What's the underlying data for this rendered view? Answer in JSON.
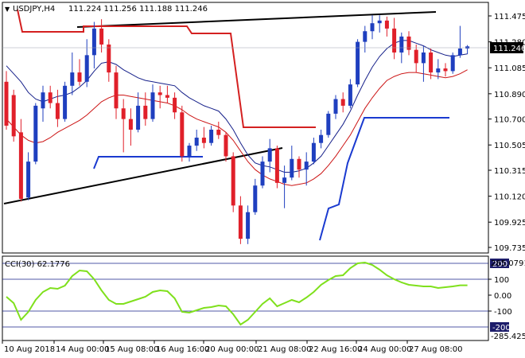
{
  "header": {
    "symbol": "USDJPY,H4",
    "ohlc": "111.224 111.256 111.188 111.246"
  },
  "indicator": {
    "label": "CCI(30) 62.1776",
    "scale_max_label": "285.0791",
    "scale_min_label": "-285.425",
    "levels": [
      200,
      100,
      0.0,
      -100,
      -200
    ],
    "level_labels": [
      "200",
      "100",
      "0.00",
      "-100",
      "-200"
    ]
  },
  "colors": {
    "bull": "#1f3fbf",
    "bear": "#e0202a",
    "ma_fast": "#16208a",
    "ma_slow": "#cc1515",
    "envelope": "#d42020",
    "stop_blue": "#1a3ad0",
    "trend": "#000000",
    "cci": "#7fe01c",
    "price_tag_bg": "#000000",
    "price_tag_fg": "#ffffff"
  },
  "chart_data": {
    "type": "candlestick",
    "symbol": "USDJPY",
    "timeframe": "H4",
    "y_ticks": [
      "111.475",
      "111.280",
      "111.085",
      "110.890",
      "110.700",
      "110.505",
      "110.315",
      "110.120",
      "109.925",
      "109.735"
    ],
    "ylim": [
      109.735,
      111.575
    ],
    "current_price": "111.246",
    "x_ticks": [
      "10 Aug 2018",
      "14 Aug 00:00",
      "15 Aug 08:00",
      "16 Aug 16:00",
      "20 Aug 00:00",
      "21 Aug 08:00",
      "22 Aug 16:00",
      "24 Aug 00:00",
      "27 Aug 08:00"
    ],
    "candles": [
      {
        "o": 110.98,
        "h": 111.06,
        "l": 110.62,
        "c": 110.65
      },
      {
        "o": 110.88,
        "h": 110.92,
        "l": 110.53,
        "c": 110.57
      },
      {
        "o": 110.6,
        "h": 110.7,
        "l": 110.08,
        "c": 110.1
      },
      {
        "o": 110.11,
        "h": 110.45,
        "l": 110.09,
        "c": 110.38
      },
      {
        "o": 110.38,
        "h": 110.82,
        "l": 110.36,
        "c": 110.8
      },
      {
        "o": 110.78,
        "h": 110.95,
        "l": 110.68,
        "c": 110.9
      },
      {
        "o": 110.9,
        "h": 110.95,
        "l": 110.78,
        "c": 110.82
      },
      {
        "o": 110.82,
        "h": 110.92,
        "l": 110.64,
        "c": 110.7
      },
      {
        "o": 110.7,
        "h": 110.98,
        "l": 110.68,
        "c": 110.95
      },
      {
        "o": 110.95,
        "h": 111.2,
        "l": 110.88,
        "c": 111.05
      },
      {
        "o": 111.05,
        "h": 111.15,
        "l": 110.95,
        "c": 110.98
      },
      {
        "o": 110.98,
        "h": 111.3,
        "l": 110.94,
        "c": 111.18
      },
      {
        "o": 111.18,
        "h": 111.43,
        "l": 111.08,
        "c": 111.38
      },
      {
        "o": 111.38,
        "h": 111.45,
        "l": 111.2,
        "c": 111.26
      },
      {
        "o": 111.26,
        "h": 111.3,
        "l": 110.98,
        "c": 111.05
      },
      {
        "o": 111.05,
        "h": 111.1,
        "l": 110.7,
        "c": 110.78
      },
      {
        "o": 110.78,
        "h": 110.85,
        "l": 110.45,
        "c": 110.7
      },
      {
        "o": 110.7,
        "h": 110.78,
        "l": 110.5,
        "c": 110.62
      },
      {
        "o": 110.62,
        "h": 110.9,
        "l": 110.6,
        "c": 110.8
      },
      {
        "o": 110.8,
        "h": 110.9,
        "l": 110.65,
        "c": 110.7
      },
      {
        "o": 110.7,
        "h": 110.96,
        "l": 110.68,
        "c": 110.9
      },
      {
        "o": 110.9,
        "h": 110.95,
        "l": 110.78,
        "c": 110.88
      },
      {
        "o": 110.88,
        "h": 110.95,
        "l": 110.82,
        "c": 110.86
      },
      {
        "o": 110.86,
        "h": 110.9,
        "l": 110.7,
        "c": 110.75
      },
      {
        "o": 110.75,
        "h": 110.8,
        "l": 110.38,
        "c": 110.42
      },
      {
        "o": 110.42,
        "h": 110.52,
        "l": 110.38,
        "c": 110.5
      },
      {
        "o": 110.5,
        "h": 110.62,
        "l": 110.46,
        "c": 110.56
      },
      {
        "o": 110.56,
        "h": 110.64,
        "l": 110.48,
        "c": 110.52
      },
      {
        "o": 110.52,
        "h": 110.65,
        "l": 110.5,
        "c": 110.62
      },
      {
        "o": 110.62,
        "h": 110.68,
        "l": 110.55,
        "c": 110.58
      },
      {
        "o": 110.58,
        "h": 110.6,
        "l": 110.38,
        "c": 110.42
      },
      {
        "o": 110.42,
        "h": 110.45,
        "l": 110.0,
        "c": 110.05
      },
      {
        "o": 110.05,
        "h": 110.12,
        "l": 109.76,
        "c": 109.8
      },
      {
        "o": 109.8,
        "h": 110.05,
        "l": 109.76,
        "c": 110.0
      },
      {
        "o": 110.0,
        "h": 110.25,
        "l": 109.98,
        "c": 110.2
      },
      {
        "o": 110.2,
        "h": 110.42,
        "l": 110.18,
        "c": 110.38
      },
      {
        "o": 110.38,
        "h": 110.55,
        "l": 110.3,
        "c": 110.48
      },
      {
        "o": 110.48,
        "h": 110.5,
        "l": 110.18,
        "c": 110.22
      },
      {
        "o": 110.22,
        "h": 110.35,
        "l": 110.03,
        "c": 110.26
      },
      {
        "o": 110.26,
        "h": 110.5,
        "l": 110.24,
        "c": 110.4
      },
      {
        "o": 110.4,
        "h": 110.42,
        "l": 110.26,
        "c": 110.32
      },
      {
        "o": 110.32,
        "h": 110.45,
        "l": 110.2,
        "c": 110.38
      },
      {
        "o": 110.38,
        "h": 110.56,
        "l": 110.36,
        "c": 110.52
      },
      {
        "o": 110.52,
        "h": 110.62,
        "l": 110.48,
        "c": 110.58
      },
      {
        "o": 110.58,
        "h": 110.76,
        "l": 110.56,
        "c": 110.74
      },
      {
        "o": 110.74,
        "h": 110.88,
        "l": 110.7,
        "c": 110.85
      },
      {
        "o": 110.85,
        "h": 110.9,
        "l": 110.75,
        "c": 110.8
      },
      {
        "o": 110.8,
        "h": 111.0,
        "l": 110.78,
        "c": 110.96
      },
      {
        "o": 110.96,
        "h": 111.3,
        "l": 110.94,
        "c": 111.28
      },
      {
        "o": 111.28,
        "h": 111.4,
        "l": 111.2,
        "c": 111.36
      },
      {
        "o": 111.36,
        "h": 111.48,
        "l": 111.3,
        "c": 111.42
      },
      {
        "o": 111.42,
        "h": 111.48,
        "l": 111.35,
        "c": 111.44
      },
      {
        "o": 111.44,
        "h": 111.47,
        "l": 111.32,
        "c": 111.38
      },
      {
        "o": 111.38,
        "h": 111.46,
        "l": 111.15,
        "c": 111.2
      },
      {
        "o": 111.2,
        "h": 111.35,
        "l": 111.12,
        "c": 111.32
      },
      {
        "o": 111.32,
        "h": 111.36,
        "l": 111.18,
        "c": 111.22
      },
      {
        "o": 111.22,
        "h": 111.26,
        "l": 111.05,
        "c": 111.12
      },
      {
        "o": 111.12,
        "h": 111.25,
        "l": 110.98,
        "c": 111.2
      },
      {
        "o": 111.2,
        "h": 111.23,
        "l": 111.0,
        "c": 111.05
      },
      {
        "o": 111.05,
        "h": 111.15,
        "l": 111.0,
        "c": 111.08
      },
      {
        "o": 111.08,
        "h": 111.12,
        "l": 111.02,
        "c": 111.06
      },
      {
        "o": 111.06,
        "h": 111.2,
        "l": 111.04,
        "c": 111.18
      },
      {
        "o": 111.18,
        "h": 111.4,
        "l": 111.16,
        "c": 111.23
      },
      {
        "o": 111.23,
        "h": 111.256,
        "l": 111.188,
        "c": 111.246
      }
    ],
    "ma_fast": [
      111.1,
      111.04,
      110.98,
      110.9,
      110.85,
      110.83,
      110.85,
      110.87,
      110.88,
      110.9,
      110.94,
      110.99,
      111.06,
      111.12,
      111.13,
      111.11,
      111.07,
      111.04,
      111.01,
      110.99,
      110.98,
      110.97,
      110.96,
      110.95,
      110.9,
      110.86,
      110.83,
      110.8,
      110.78,
      110.76,
      110.7,
      110.62,
      110.52,
      110.43,
      110.37,
      110.35,
      110.34,
      110.32,
      110.3,
      110.3,
      110.31,
      110.33,
      110.37,
      110.42,
      110.5,
      110.58,
      110.66,
      110.76,
      110.88,
      110.99,
      111.09,
      111.17,
      111.23,
      111.27,
      111.29,
      111.29,
      111.27,
      111.25,
      111.22,
      111.2,
      111.18,
      111.17,
      111.18,
      111.19
    ],
    "ma_slow": [
      110.7,
      110.64,
      110.58,
      110.54,
      110.52,
      110.53,
      110.56,
      110.6,
      110.63,
      110.66,
      110.69,
      110.73,
      110.78,
      110.83,
      110.86,
      110.88,
      110.88,
      110.87,
      110.86,
      110.85,
      110.84,
      110.83,
      110.82,
      110.8,
      110.77,
      110.73,
      110.7,
      110.68,
      110.66,
      110.64,
      110.6,
      110.54,
      110.46,
      110.38,
      110.32,
      110.28,
      110.25,
      110.23,
      110.21,
      110.2,
      110.21,
      110.22,
      110.25,
      110.29,
      110.35,
      110.42,
      110.5,
      110.58,
      110.68,
      110.78,
      110.86,
      110.93,
      110.99,
      111.02,
      111.04,
      111.05,
      111.05,
      111.04,
      111.03,
      111.02,
      111.01,
      111.02,
      111.04,
      111.07
    ],
    "cci": [
      -10,
      -50,
      -155,
      -105,
      -30,
      20,
      45,
      40,
      60,
      120,
      155,
      150,
      100,
      30,
      -30,
      -55,
      -55,
      -40,
      -25,
      -10,
      20,
      30,
      25,
      -20,
      -105,
      -110,
      -95,
      -80,
      -75,
      -65,
      -70,
      -120,
      -185,
      -155,
      -105,
      -55,
      -20,
      -70,
      -50,
      -30,
      -45,
      -15,
      20,
      65,
      95,
      120,
      125,
      170,
      200,
      205,
      190,
      160,
      125,
      100,
      80,
      65,
      60,
      55,
      55,
      45,
      50,
      55,
      62,
      62.18
    ]
  }
}
